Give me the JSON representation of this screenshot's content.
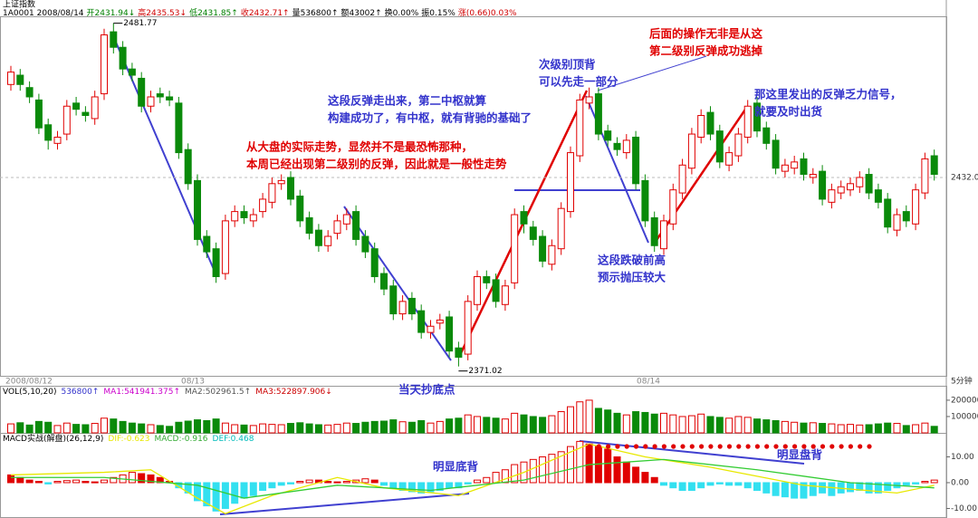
{
  "header": {
    "title": "上证指数",
    "segments": [
      {
        "text": "1A0001 2008/08/14",
        "color": "#000000"
      },
      {
        "text": "开2431.94↓",
        "color": "#008000"
      },
      {
        "text": "高2435.53↓",
        "color": "#d00000"
      },
      {
        "text": "低2431.85↑",
        "color": "#008000"
      },
      {
        "text": "收2432.71↑",
        "color": "#d00000"
      },
      {
        "text": "量536800↑",
        "color": "#000000"
      },
      {
        "text": "额43002↑",
        "color": "#000000"
      },
      {
        "text": "换0.00%",
        "color": "#000000"
      },
      {
        "text": "振0.15%",
        "color": "#000000"
      },
      {
        "text": "涨(0.66)0.03%",
        "color": "#d00000"
      }
    ]
  },
  "chart_data": {
    "type": "candlestick",
    "up_color": "#e00000",
    "down_color": "#0a8a0a",
    "ylim": [
      2368,
      2484
    ],
    "yticks": [
      {
        "value": 2432,
        "label": "2432.0"
      }
    ],
    "grid": true,
    "high_label": "2481.77",
    "low_label": "2371.02",
    "time_labels": [
      "2008/08/12",
      "08/13",
      "08/14",
      "5分钟"
    ],
    "candles": {
      "open": [
        2462,
        2465,
        2461,
        2457,
        2449,
        2443,
        2446,
        2456,
        2453,
        2451,
        2459,
        2479,
        2474,
        2467,
        2464,
        2455,
        2459,
        2458,
        2456,
        2441,
        2431,
        2413,
        2409,
        2401,
        2418,
        2421,
        2418,
        2421,
        2424,
        2430,
        2432,
        2426,
        2419,
        2415,
        2410,
        2414,
        2417,
        2421,
        2413,
        2409,
        2401,
        2397,
        2388,
        2393,
        2389,
        2382,
        2385,
        2387,
        2377,
        2375,
        2391,
        2400,
        2399,
        2391,
        2398,
        2421,
        2416,
        2413,
        2404,
        2409,
        2421,
        2439,
        2456,
        2459,
        2447,
        2443,
        2440,
        2445,
        2431,
        2419,
        2409,
        2417,
        2427,
        2435,
        2445,
        2453,
        2447,
        2436,
        2439,
        2445,
        2456,
        2448,
        2444,
        2434,
        2435,
        2438,
        2432,
        2434,
        2424,
        2427,
        2428,
        2429,
        2433,
        2428,
        2425,
        2415,
        2421,
        2417,
        2427,
        2439
      ],
      "high": [
        2468,
        2467,
        2463,
        2459,
        2451,
        2447,
        2457,
        2458,
        2455,
        2460,
        2480,
        2481.77,
        2476,
        2469,
        2466,
        2460,
        2461,
        2460,
        2458,
        2443,
        2433,
        2415,
        2411,
        2420,
        2423,
        2423,
        2422,
        2427,
        2432,
        2433,
        2434,
        2428,
        2421,
        2417,
        2415,
        2420,
        2422,
        2423,
        2415,
        2411,
        2403,
        2399,
        2394,
        2395,
        2391,
        2386,
        2388,
        2389,
        2379,
        2394,
        2402,
        2402,
        2401,
        2399,
        2422,
        2423,
        2418,
        2415,
        2412,
        2424,
        2442,
        2459,
        2461,
        2461,
        2449,
        2445,
        2446,
        2447,
        2433,
        2421,
        2420,
        2430,
        2438,
        2448,
        2454,
        2455,
        2449,
        2442,
        2448,
        2457,
        2458,
        2450,
        2446,
        2438,
        2439,
        2440,
        2435,
        2436,
        2430,
        2431,
        2432,
        2434,
        2435,
        2430,
        2427,
        2422,
        2423,
        2430,
        2440,
        2441
      ],
      "low": [
        2460,
        2460,
        2456,
        2446,
        2441,
        2441,
        2444,
        2452,
        2450,
        2449,
        2457,
        2472,
        2465,
        2463,
        2453,
        2453,
        2456,
        2455,
        2438,
        2428,
        2410,
        2406,
        2398,
        2399,
        2416,
        2417,
        2416,
        2419,
        2422,
        2428,
        2423,
        2416,
        2412,
        2408,
        2408,
        2412,
        2415,
        2410,
        2406,
        2398,
        2394,
        2386,
        2386,
        2386,
        2380,
        2380,
        2383,
        2374,
        2371.02,
        2373,
        2389,
        2396,
        2390,
        2389,
        2396,
        2414,
        2410,
        2403,
        2402,
        2407,
        2419,
        2437,
        2454,
        2444,
        2442,
        2439,
        2438,
        2428,
        2416,
        2408,
        2407,
        2415,
        2425,
        2433,
        2443,
        2444,
        2435,
        2434,
        2437,
        2443,
        2445,
        2441,
        2433,
        2432,
        2433,
        2431,
        2430,
        2423,
        2422,
        2425,
        2426,
        2427,
        2425,
        2422,
        2414,
        2413,
        2416,
        2415,
        2425,
        2431
      ],
      "close": [
        2466,
        2462,
        2458,
        2448,
        2444,
        2445,
        2455,
        2454,
        2452,
        2458,
        2478,
        2474,
        2467,
        2465,
        2455,
        2458,
        2458,
        2457,
        2440,
        2430,
        2412,
        2408,
        2400,
        2418,
        2421,
        2419,
        2420,
        2425,
        2430,
        2431,
        2425,
        2418,
        2414,
        2410,
        2413,
        2418,
        2420,
        2412,
        2408,
        2400,
        2396,
        2388,
        2392,
        2388,
        2382,
        2384,
        2386,
        2376,
        2374,
        2392,
        2400,
        2398,
        2392,
        2397,
        2420,
        2417,
        2412,
        2405,
        2410,
        2422,
        2440,
        2457,
        2458,
        2446,
        2444,
        2441,
        2444,
        2430,
        2418,
        2410,
        2418,
        2428,
        2436,
        2446,
        2452,
        2446,
        2437,
        2440,
        2446,
        2455,
        2447,
        2443,
        2435,
        2436,
        2437,
        2433,
        2433,
        2425,
        2428,
        2429,
        2430,
        2432,
        2427,
        2424,
        2416,
        2420,
        2418,
        2428,
        2438,
        2433
      ]
    },
    "volume": {
      "title": "VOL(5,10,20)",
      "current": "536800↑",
      "ma1": "MA1:541941.375↑",
      "ma2": "MA2:502961.5↑",
      "ma3": "MA3:522897.906↓",
      "ylim": [
        0,
        255000
      ],
      "yticks": [
        100000,
        200000
      ],
      "values": [
        55000,
        62000,
        48000,
        70000,
        65000,
        45000,
        60000,
        52000,
        50000,
        58000,
        90000,
        85000,
        70000,
        60000,
        55000,
        50000,
        45000,
        40000,
        65000,
        72000,
        80000,
        75000,
        85000,
        60000,
        50000,
        48000,
        45000,
        55000,
        52000,
        50000,
        58000,
        62000,
        55000,
        50000,
        48000,
        52000,
        60000,
        58000,
        65000,
        70000,
        72000,
        80000,
        68000,
        65000,
        75000,
        60000,
        70000,
        85000,
        90000,
        110000,
        100000,
        95000,
        90000,
        85000,
        120000,
        110000,
        100000,
        95000,
        105000,
        130000,
        160000,
        190000,
        200000,
        150000,
        140000,
        120000,
        110000,
        130000,
        125000,
        115000,
        120000,
        110000,
        100000,
        105000,
        115000,
        100000,
        95000,
        90000,
        100000,
        95000,
        85000,
        80000,
        75000,
        70000,
        65000,
        60000,
        62000,
        58000,
        55000,
        50000,
        52000,
        48000,
        50000,
        55000,
        60000,
        58000,
        45000,
        50000,
        60000,
        40000
      ]
    },
    "macd": {
      "title": "MACD实战(解盘)(26,12,9)",
      "dif_label": "DIF:-0.623",
      "macd_label": "MACD:-0.916",
      "dea_label": "DEF:0.468",
      "ylim": [
        -13.7,
        18.6
      ],
      "yticks": [
        {
          "value": 10,
          "label": "10.00"
        },
        {
          "value": 0,
          "label": "0.00"
        },
        {
          "value": -10,
          "label": "-10.00"
        }
      ],
      "values": [
        3,
        2,
        1,
        0.5,
        -0.5,
        0.5,
        0.8,
        1,
        0.5,
        0.3,
        1,
        2,
        3,
        4,
        3.5,
        3,
        2,
        0.5,
        -2,
        -4,
        -7,
        -9,
        -11,
        -10,
        -8,
        -6,
        -5,
        -3,
        -2,
        -1,
        -0.5,
        0.5,
        1,
        1,
        0.5,
        0.3,
        0.5,
        1,
        1.5,
        1,
        -1,
        -2,
        -3,
        -3.5,
        -4,
        -3.5,
        -3,
        -2,
        -2,
        -0.5,
        1,
        2,
        4,
        5,
        7,
        8,
        9,
        10,
        11,
        12,
        14,
        16,
        15,
        14,
        13,
        10,
        8,
        6,
        4,
        2,
        -1,
        -2,
        -3,
        -3,
        -2,
        -1,
        -0.5,
        -1,
        -1,
        -2,
        -3,
        -4,
        -5,
        -5.5,
        -6,
        -6,
        -5,
        -4,
        -5,
        -4,
        -3.5,
        -3,
        -4,
        -4,
        -3,
        -2,
        -1,
        -0.5,
        0.5,
        1
      ],
      "dif": {
        "x": [
          0,
          10,
          15,
          20,
          23,
          28,
          35,
          40,
          48,
          55,
          62,
          68,
          75,
          85,
          95,
          99
        ],
        "values": [
          3,
          4,
          5,
          -6,
          -12,
          -5,
          2,
          -2,
          -5,
          4,
          15,
          10,
          6,
          -1,
          -4,
          -1
        ],
        "color": "#e8e800"
      },
      "dea": {
        "x": [
          0,
          10,
          20,
          25,
          35,
          45,
          55,
          62,
          70,
          80,
          90,
          99
        ],
        "values": [
          2,
          2,
          -1,
          -6,
          -1,
          -3,
          1,
          7,
          9,
          5,
          0,
          -2
        ],
        "color": "#33cc33"
      }
    },
    "annotations": [
      {
        "lines": [
          "从大盘的实际走势，显然并不是最恐怖那种，",
          "本周已经出现第二级别的反弹，因此就是一般性走势"
        ],
        "color": "#e00000"
      },
      {
        "lines": [
          "这段反弹走出来，第二中枢就算",
          "构建成功了，有中枢，就有背驰的基础了"
        ],
        "color": "#3333cc"
      },
      {
        "lines": [
          "次级别顶背",
          "可以先走一部分"
        ],
        "color": "#3333cc"
      },
      {
        "lines": [
          "后面的操作无非是从这",
          "第二级别反弹成功逃掉"
        ],
        "color": "#e00000"
      },
      {
        "lines": [
          "那这里发出的反弹乏力信号，",
          "就要及时出货"
        ],
        "color": "#3333cc"
      },
      {
        "lines": [
          "这段跌破前高",
          "预示抛压较大"
        ],
        "color": "#3333cc"
      },
      {
        "lines": [
          "当天抄底点"
        ],
        "color": "#3333cc"
      },
      {
        "lines": [
          "明显底背"
        ],
        "color": "#3333cc"
      },
      {
        "lines": [
          "明显盘背"
        ],
        "color": "#3333cc"
      }
    ]
  }
}
